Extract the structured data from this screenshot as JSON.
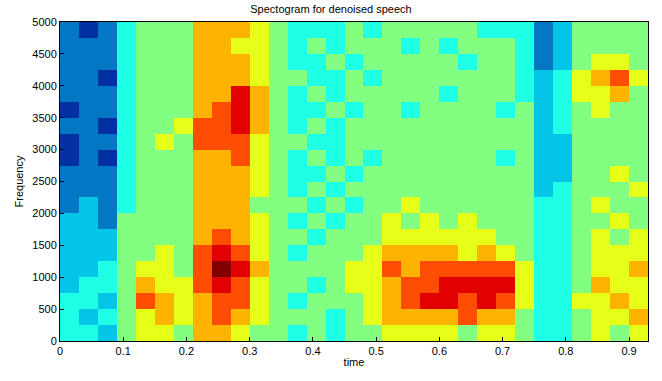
{
  "chart_data": {
    "type": "heatmap",
    "title": "Spectogram for denoised speech",
    "x_label": "time",
    "y_label": "Frequency",
    "x": [
      0.015,
      0.045,
      0.075,
      0.105,
      0.135,
      0.165,
      0.195,
      0.225,
      0.255,
      0.285,
      0.315,
      0.345,
      0.375,
      0.405,
      0.435,
      0.465,
      0.495,
      0.525,
      0.555,
      0.585,
      0.615,
      0.645,
      0.675,
      0.705,
      0.735,
      0.765,
      0.795,
      0.825,
      0.855,
      0.885,
      0.915
    ],
    "y": [
      125,
      375,
      625,
      875,
      1125,
      1375,
      1625,
      1875,
      2125,
      2375,
      2625,
      2875,
      3125,
      3375,
      3625,
      3875,
      4125,
      4375,
      4625,
      4875
    ],
    "z": [
      [
        4,
        4,
        3,
        5,
        6,
        6,
        5,
        7,
        7,
        6,
        5,
        5,
        4,
        5,
        4,
        5,
        5,
        6,
        6,
        6,
        6,
        5,
        6,
        6,
        5,
        4,
        4,
        5,
        6,
        5,
        6
      ],
      [
        4,
        3,
        4,
        5,
        6,
        7,
        6,
        7,
        8,
        7,
        6,
        5,
        5,
        5,
        4,
        5,
        6,
        7,
        7,
        7,
        7,
        8,
        7,
        7,
        5,
        4,
        4,
        5,
        6,
        6,
        7
      ],
      [
        4,
        4,
        3,
        5,
        8,
        7,
        6,
        7,
        8,
        8,
        6,
        5,
        4,
        5,
        5,
        5,
        6,
        7,
        8,
        9,
        9,
        8,
        9,
        8,
        6,
        4,
        4,
        6,
        6,
        7,
        6
      ],
      [
        3,
        4,
        4,
        5,
        7,
        6,
        6,
        8,
        9,
        8,
        6,
        5,
        5,
        4,
        5,
        6,
        6,
        7,
        8,
        8,
        9,
        9,
        9,
        9,
        6,
        4,
        4,
        5,
        7,
        6,
        6
      ],
      [
        3,
        3,
        4,
        5,
        6,
        6,
        5,
        8,
        10,
        9,
        7,
        5,
        5,
        5,
        5,
        6,
        6,
        8,
        7,
        8,
        8,
        8,
        8,
        8,
        6,
        4,
        4,
        5,
        6,
        6,
        7
      ],
      [
        3,
        3,
        3,
        5,
        5,
        6,
        5,
        8,
        9,
        8,
        6,
        5,
        4,
        5,
        5,
        5,
        6,
        7,
        7,
        7,
        7,
        6,
        7,
        6,
        5,
        4,
        4,
        5,
        6,
        6,
        6
      ],
      [
        3,
        3,
        3,
        5,
        5,
        5,
        5,
        7,
        8,
        7,
        6,
        5,
        5,
        4,
        5,
        5,
        5,
        6,
        6,
        6,
        6,
        6,
        6,
        5,
        5,
        4,
        4,
        5,
        6,
        5,
        6
      ],
      [
        3,
        3,
        2,
        5,
        5,
        5,
        5,
        7,
        7,
        7,
        6,
        5,
        4,
        5,
        4,
        5,
        5,
        6,
        5,
        6,
        5,
        6,
        5,
        5,
        5,
        4,
        4,
        5,
        5,
        6,
        5
      ],
      [
        2,
        3,
        2,
        4,
        5,
        5,
        5,
        7,
        7,
        7,
        5,
        5,
        5,
        4,
        5,
        4,
        5,
        5,
        6,
        5,
        5,
        5,
        5,
        5,
        5,
        4,
        4,
        5,
        6,
        5,
        5
      ],
      [
        2,
        2,
        2,
        4,
        5,
        5,
        5,
        7,
        7,
        7,
        6,
        5,
        4,
        5,
        4,
        5,
        5,
        5,
        5,
        5,
        5,
        5,
        5,
        5,
        5,
        3,
        4,
        5,
        5,
        5,
        6
      ],
      [
        2,
        2,
        2,
        4,
        5,
        5,
        5,
        7,
        7,
        7,
        6,
        5,
        4,
        4,
        5,
        4,
        5,
        5,
        5,
        5,
        5,
        5,
        5,
        5,
        5,
        3,
        3,
        5,
        5,
        6,
        5
      ],
      [
        1,
        2,
        1,
        4,
        5,
        5,
        5,
        7,
        7,
        8,
        6,
        5,
        4,
        5,
        4,
        5,
        4,
        5,
        5,
        5,
        5,
        5,
        5,
        4,
        5,
        3,
        3,
        5,
        5,
        5,
        5
      ],
      [
        1,
        2,
        2,
        4,
        5,
        6,
        5,
        8,
        8,
        8,
        6,
        5,
        5,
        4,
        4,
        5,
        5,
        5,
        5,
        5,
        5,
        5,
        5,
        5,
        5,
        3,
        3,
        5,
        5,
        5,
        5
      ],
      [
        2,
        2,
        1,
        4,
        5,
        5,
        6,
        8,
        8,
        9,
        7,
        5,
        4,
        5,
        4,
        5,
        5,
        5,
        5,
        5,
        5,
        5,
        5,
        5,
        5,
        3,
        4,
        5,
        5,
        5,
        5
      ],
      [
        1,
        2,
        2,
        4,
        5,
        5,
        5,
        7,
        8,
        9,
        7,
        5,
        4,
        4,
        5,
        4,
        5,
        5,
        4,
        5,
        5,
        5,
        5,
        4,
        5,
        3,
        4,
        5,
        6,
        5,
        5
      ],
      [
        2,
        2,
        2,
        4,
        5,
        5,
        5,
        7,
        7,
        9,
        7,
        5,
        4,
        5,
        4,
        5,
        5,
        5,
        5,
        5,
        4,
        5,
        5,
        5,
        4,
        3,
        4,
        6,
        6,
        7,
        5
      ],
      [
        2,
        2,
        1,
        4,
        5,
        5,
        5,
        7,
        7,
        7,
        6,
        5,
        5,
        4,
        4,
        5,
        4,
        5,
        5,
        5,
        5,
        5,
        5,
        5,
        4,
        3,
        4,
        6,
        7,
        8,
        6
      ],
      [
        2,
        2,
        2,
        4,
        5,
        5,
        5,
        7,
        7,
        7,
        6,
        5,
        4,
        4,
        5,
        4,
        5,
        5,
        5,
        5,
        5,
        4,
        5,
        5,
        4,
        2,
        3,
        5,
        6,
        6,
        5
      ],
      [
        2,
        2,
        2,
        4,
        5,
        5,
        5,
        7,
        7,
        6,
        6,
        5,
        4,
        5,
        4,
        5,
        5,
        5,
        4,
        5,
        4,
        5,
        5,
        5,
        4,
        2,
        3,
        5,
        5,
        5,
        5
      ],
      [
        2,
        1,
        2,
        4,
        5,
        5,
        5,
        7,
        7,
        7,
        6,
        5,
        4,
        4,
        4,
        5,
        4,
        5,
        5,
        5,
        5,
        5,
        4,
        4,
        4,
        2,
        3,
        5,
        5,
        5,
        5
      ]
    ],
    "zlim": [
      0,
      10
    ],
    "xlim": [
      0,
      0.93
    ],
    "ylim": [
      0,
      5000
    ],
    "xticks": [
      0,
      0.1,
      0.2,
      0.3,
      0.4,
      0.5,
      0.6,
      0.7,
      0.8,
      0.9
    ],
    "yticks": [
      0,
      500,
      1000,
      1500,
      2000,
      2500,
      3000,
      3500,
      4000,
      4500,
      5000
    ],
    "grid": false
  }
}
